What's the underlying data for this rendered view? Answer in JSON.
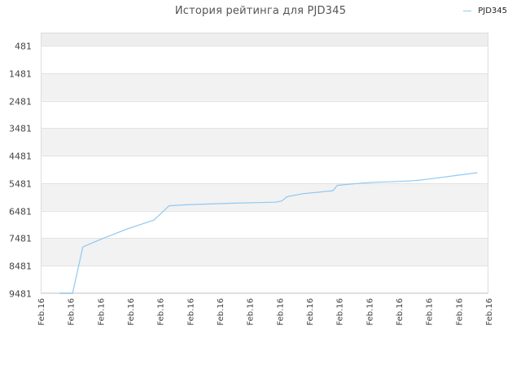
{
  "chart_data": {
    "type": "line",
    "title": "История рейтинга для PJD345",
    "legend_position": "top-right",
    "grid": true,
    "colors": {
      "line": "#90c8f0",
      "band": "#f2f2f2",
      "grid": "#e2e2e2"
    },
    "y_reversed": true,
    "ylim": [
      9481,
      481
    ],
    "y_ticks": [
      481,
      1481,
      2481,
      3481,
      4481,
      5481,
      6481,
      7481,
      8481,
      9481
    ],
    "x_tick_labels": [
      "Feb.16",
      "Feb.16",
      "Feb.16",
      "Feb.16",
      "Feb.16",
      "Feb.16",
      "Feb.16",
      "Feb.16",
      "Feb.16",
      "Feb.16",
      "Feb.16",
      "Feb.16",
      "Feb.16",
      "Feb.16",
      "Feb.16",
      "Feb.16"
    ],
    "series": [
      {
        "name": "PJD345",
        "points": [
          [
            0.63,
            9481
          ],
          [
            1.07,
            9481
          ],
          [
            1.41,
            7800
          ],
          [
            2.06,
            7500
          ],
          [
            2.88,
            7150
          ],
          [
            3.8,
            6820
          ],
          [
            4.3,
            6300
          ],
          [
            4.8,
            6270
          ],
          [
            5.55,
            6240
          ],
          [
            6.37,
            6210
          ],
          [
            7.15,
            6190
          ],
          [
            7.86,
            6170
          ],
          [
            8.07,
            6130
          ],
          [
            8.26,
            5970
          ],
          [
            8.8,
            5860
          ],
          [
            9.3,
            5810
          ],
          [
            9.8,
            5750
          ],
          [
            9.93,
            5560
          ],
          [
            10.41,
            5510
          ],
          [
            11.13,
            5450
          ],
          [
            11.94,
            5420
          ],
          [
            12.61,
            5380
          ],
          [
            13.0,
            5330
          ],
          [
            14.63,
            5100
          ]
        ]
      }
    ]
  }
}
